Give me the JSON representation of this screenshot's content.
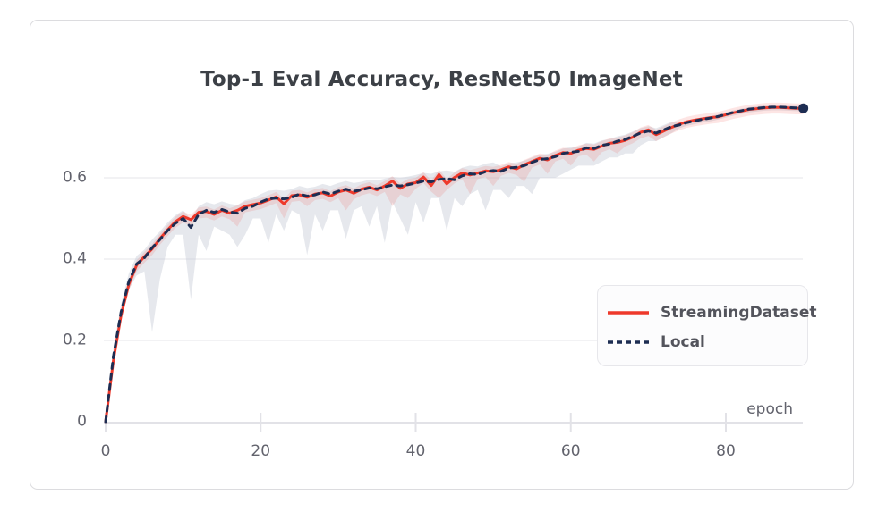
{
  "card": {
    "background": "#ffffff",
    "border_color": "#dcdcdf"
  },
  "colors": {
    "title_text": "#3c4046",
    "tick_text": "#62636d",
    "gridline": "#ededf1",
    "axis_line": "#e2e2e7",
    "streaming_red": "#ee392b",
    "local_navy": "#1d2d52",
    "streaming_band": "rgba(238,57,43,0.13)",
    "local_band": "rgba(200,203,216,0.45)",
    "legend_bg": "#fcfcfd",
    "legend_border": "#e7e7eb",
    "legend_text": "#53545c"
  },
  "chart_data": {
    "type": "line",
    "title": "Top-1 Eval Accuracy, ResNet50 ImageNet",
    "xlabel": "epoch",
    "ylabel": "",
    "xlim": [
      0,
      90
    ],
    "ylim": [
      0,
      0.8
    ],
    "xticks": [
      "0",
      "20",
      "40",
      "60",
      "80"
    ],
    "xtick_values": [
      0,
      20,
      40,
      60,
      80
    ],
    "yticks": [
      "0",
      "0.2",
      "0.4",
      "0.6"
    ],
    "ytick_values": [
      0,
      0.2,
      0.4,
      0.6
    ],
    "grid": "horizontal",
    "legend_position": "lower-right-box",
    "x_start": 0,
    "x_step": 1,
    "series": [
      {
        "name": "StreamingDataset",
        "color": "#ee392b",
        "style": "solid",
        "band_color": "rgba(238,57,43,0.13)",
        "end_dot": false,
        "values": [
          0.0,
          0.15,
          0.262,
          0.338,
          0.385,
          0.406,
          0.425,
          0.45,
          0.472,
          0.492,
          0.505,
          0.497,
          0.515,
          0.517,
          0.51,
          0.52,
          0.513,
          0.52,
          0.53,
          0.534,
          0.538,
          0.545,
          0.553,
          0.536,
          0.556,
          0.558,
          0.552,
          0.56,
          0.563,
          0.555,
          0.565,
          0.57,
          0.562,
          0.572,
          0.577,
          0.57,
          0.58,
          0.592,
          0.574,
          0.585,
          0.588,
          0.602,
          0.581,
          0.608,
          0.585,
          0.601,
          0.612,
          0.607,
          0.612,
          0.617,
          0.615,
          0.62,
          0.627,
          0.622,
          0.632,
          0.64,
          0.648,
          0.644,
          0.655,
          0.662,
          0.66,
          0.668,
          0.672,
          0.67,
          0.678,
          0.685,
          0.687,
          0.692,
          0.7,
          0.712,
          0.718,
          0.706,
          0.715,
          0.724,
          0.732,
          0.738,
          0.742,
          0.745,
          0.748,
          0.75,
          0.755,
          0.76,
          0.764,
          0.768,
          0.77,
          0.772,
          0.773,
          0.773,
          0.772,
          0.771,
          0.771
        ],
        "band_lo": [
          0.0,
          0.135,
          0.247,
          0.323,
          0.37,
          0.391,
          0.41,
          0.435,
          0.457,
          0.477,
          0.49,
          0.482,
          0.5,
          0.502,
          0.495,
          0.505,
          0.498,
          0.48,
          0.515,
          0.519,
          0.523,
          0.53,
          0.538,
          0.5,
          0.541,
          0.543,
          0.53,
          0.545,
          0.548,
          0.54,
          0.55,
          0.52,
          0.547,
          0.557,
          0.562,
          0.555,
          0.565,
          0.53,
          0.559,
          0.55,
          0.573,
          0.587,
          0.566,
          0.55,
          0.57,
          0.586,
          0.597,
          0.56,
          0.597,
          0.602,
          0.58,
          0.605,
          0.612,
          0.607,
          0.59,
          0.625,
          0.633,
          0.61,
          0.64,
          0.647,
          0.63,
          0.653,
          0.657,
          0.64,
          0.663,
          0.67,
          0.66,
          0.677,
          0.685,
          0.697,
          0.703,
          0.69,
          0.7,
          0.709,
          0.717,
          0.723,
          0.727,
          0.73,
          0.733,
          0.735,
          0.74,
          0.745,
          0.749,
          0.753,
          0.755,
          0.757,
          0.758,
          0.758,
          0.757,
          0.756,
          0.756
        ],
        "band_hi": [
          0.0,
          0.162,
          0.274,
          0.35,
          0.397,
          0.418,
          0.437,
          0.462,
          0.484,
          0.504,
          0.517,
          0.509,
          0.527,
          0.529,
          0.522,
          0.532,
          0.525,
          0.532,
          0.542,
          0.546,
          0.55,
          0.557,
          0.565,
          0.548,
          0.568,
          0.57,
          0.564,
          0.572,
          0.575,
          0.567,
          0.577,
          0.582,
          0.574,
          0.584,
          0.589,
          0.582,
          0.592,
          0.604,
          0.586,
          0.597,
          0.6,
          0.614,
          0.593,
          0.62,
          0.597,
          0.613,
          0.624,
          0.619,
          0.624,
          0.629,
          0.627,
          0.632,
          0.639,
          0.634,
          0.644,
          0.652,
          0.66,
          0.656,
          0.667,
          0.674,
          0.672,
          0.68,
          0.684,
          0.682,
          0.69,
          0.697,
          0.699,
          0.704,
          0.712,
          0.724,
          0.73,
          0.718,
          0.727,
          0.736,
          0.744,
          0.75,
          0.754,
          0.757,
          0.76,
          0.762,
          0.767,
          0.772,
          0.776,
          0.78,
          0.782,
          0.784,
          0.785,
          0.785,
          0.784,
          0.783,
          0.783
        ]
      },
      {
        "name": "Local",
        "color": "#1d2d52",
        "style": "dashed",
        "band_color": "rgba(200,203,216,0.45)",
        "end_dot": true,
        "values": [
          0.0,
          0.16,
          0.27,
          0.345,
          0.388,
          0.403,
          0.428,
          0.448,
          0.47,
          0.488,
          0.5,
          0.478,
          0.51,
          0.52,
          0.515,
          0.522,
          0.516,
          0.513,
          0.525,
          0.53,
          0.54,
          0.548,
          0.55,
          0.548,
          0.552,
          0.56,
          0.555,
          0.558,
          0.565,
          0.56,
          0.567,
          0.572,
          0.567,
          0.57,
          0.575,
          0.573,
          0.578,
          0.582,
          0.58,
          0.583,
          0.587,
          0.592,
          0.59,
          0.596,
          0.598,
          0.595,
          0.605,
          0.61,
          0.608,
          0.615,
          0.618,
          0.616,
          0.624,
          0.626,
          0.63,
          0.638,
          0.645,
          0.647,
          0.652,
          0.66,
          0.663,
          0.665,
          0.674,
          0.672,
          0.68,
          0.683,
          0.69,
          0.694,
          0.702,
          0.71,
          0.715,
          0.71,
          0.718,
          0.726,
          0.73,
          0.736,
          0.74,
          0.744,
          0.747,
          0.751,
          0.756,
          0.761,
          0.765,
          0.769,
          0.771,
          0.773,
          0.774,
          0.774,
          0.773,
          0.772,
          0.771
        ],
        "band_lo": [
          0.0,
          0.14,
          0.25,
          0.325,
          0.36,
          0.37,
          0.22,
          0.35,
          0.43,
          0.46,
          0.46,
          0.3,
          0.46,
          0.42,
          0.48,
          0.47,
          0.46,
          0.43,
          0.46,
          0.5,
          0.5,
          0.44,
          0.51,
          0.47,
          0.52,
          0.51,
          0.41,
          0.51,
          0.47,
          0.52,
          0.52,
          0.45,
          0.52,
          0.53,
          0.48,
          0.53,
          0.44,
          0.54,
          0.5,
          0.46,
          0.54,
          0.49,
          0.55,
          0.55,
          0.47,
          0.55,
          0.53,
          0.56,
          0.57,
          0.52,
          0.57,
          0.57,
          0.55,
          0.58,
          0.58,
          0.56,
          0.6,
          0.6,
          0.6,
          0.61,
          0.62,
          0.63,
          0.63,
          0.63,
          0.64,
          0.65,
          0.65,
          0.66,
          0.66,
          0.68,
          0.69,
          0.69,
          0.7,
          0.71,
          0.722,
          0.728,
          0.732,
          0.736,
          0.739,
          0.743,
          0.748,
          0.753,
          0.757,
          0.761,
          0.763,
          0.765,
          0.766,
          0.766,
          0.765,
          0.764,
          0.763
        ],
        "band_hi": [
          0.0,
          0.18,
          0.29,
          0.365,
          0.408,
          0.423,
          0.448,
          0.468,
          0.49,
          0.508,
          0.52,
          0.498,
          0.53,
          0.54,
          0.535,
          0.542,
          0.536,
          0.533,
          0.545,
          0.55,
          0.56,
          0.568,
          0.57,
          0.568,
          0.572,
          0.58,
          0.575,
          0.578,
          0.585,
          0.58,
          0.587,
          0.592,
          0.587,
          0.59,
          0.595,
          0.593,
          0.598,
          0.602,
          0.6,
          0.603,
          0.607,
          0.612,
          0.61,
          0.616,
          0.618,
          0.615,
          0.625,
          0.63,
          0.628,
          0.635,
          0.638,
          0.628,
          0.636,
          0.638,
          0.642,
          0.65,
          0.657,
          0.659,
          0.664,
          0.672,
          0.675,
          0.677,
          0.686,
          0.684,
          0.692,
          0.695,
          0.702,
          0.706,
          0.714,
          0.722,
          0.727,
          0.722,
          0.73,
          0.738,
          0.735,
          0.741,
          0.745,
          0.749,
          0.752,
          0.756,
          0.761,
          0.766,
          0.77,
          0.774,
          0.776,
          0.778,
          0.779,
          0.779,
          0.778,
          0.777,
          0.776
        ]
      }
    ],
    "legend": [
      {
        "label": "StreamingDataset",
        "swatch": "red-solid-line"
      },
      {
        "label": "Local",
        "swatch": "navy-dashed-line"
      }
    ]
  }
}
